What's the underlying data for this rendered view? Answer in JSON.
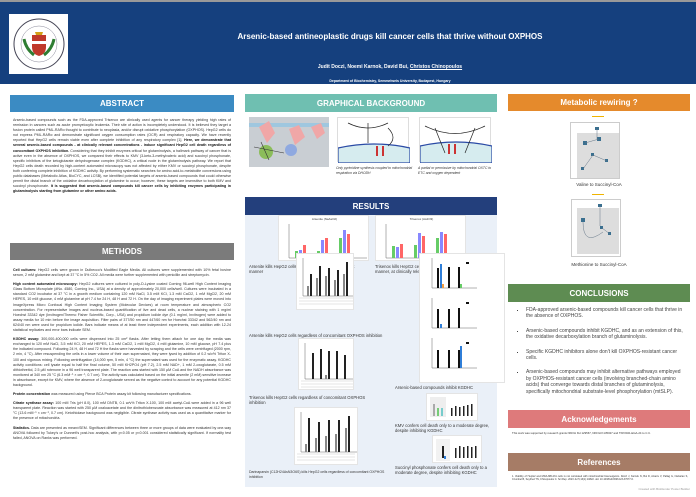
{
  "header": {
    "title": "Arsenic-based antineoplastic drugs kill cancer cells that thrive without OXPHOS",
    "authors": "Judit Doczi, Noemi Karnok, David Bui, ",
    "presenting_author": "Christos Chinopoulos",
    "affiliation": "Department of Biochemistry, Semmelweis University, Budapest, Hungary",
    "logo_text": "Universitas Budapestinensis de Semmelweis Nominata 1769"
  },
  "abstract": {
    "title": "ABSTRACT",
    "text1": "Arsenic-based compounds such as the FDA-approved Trisenox are clinically used agents for cancer therapy yielding high rates of remission in cancers such as acute promyelocytic leukemia. Their site of action is incompletely understood. It is believed they target a fusion protein called PML-RARα thought to contribute to neoplasia, and/or disrupt oxidative phosphorylation (OXPHOS). HepG2 cells do not express PML-RARα and demonstrate significant oxygen consumption rates (OCR) and respiratory capacity. We have recently reported that HepG2 cells remain viable even after complete inhibition of any respiratory complex [1]. ",
    "bold1": "Here, we demonstrate that several arsenic-based compounds - at clinically relevant concentrations - induce significant HepG2 cell death regardless of concomitant OXPHOS inhibition.",
    "text2": " Considering that they inhibit enzymes critical for glutaminolysis, a hallmark pathway of cancer that is active even in the absence of OXPHOS, we compared their effects to KMV (3-keto-3-methylvaleric acid) and succinyl phosphonate, specific inhibitors of the ketoglutarate dehydrogenase complex (KGDHC), a critical node in the glutaminolysis pathway. We report that HepG2 cells death recorded by high-content automated microscopy was not affected by either KMV or succinyl phosphonate, despite both conferring complete inhibition of KGDHC activity. By performing systematic searches for amino acid-to-metabolite conversions using public databases (Metabolic Atlas, BioCYC, and LCSB), we identified potential targets of arsenic-based compounds that could otherwise permit the distal branch of the oxidative decarboxylation of glutamine to occur; however, these targets are insensitive to both KMV and succinyl phosphonate. ",
    "bold2": "It is suggested that arsenic-based compounds kill cancer cells by inhibiting enzymes participating in glutaminolysis starting from glutamine or other amino acids."
  },
  "methods": {
    "title": "METHODS",
    "paragraphs": [
      {
        "label": "Cell cultures:",
        "text": " HepG2 cells were grown in Dulbecco's Modified Eagle Media. All cultures were supplemented with 10% fetal bovine serum, 2 mM glutamine and kept at 37 °C in 5% CO2. All media were further supplemented with penicillin and streptomycin."
      },
      {
        "label": "High content automated microscopy:",
        "text": " HepG2 cultures were cultured in poly-D-Lysine coated Corning 96-well High Content Imaging Glass Bottom Microplate (#No. 4580, Corning Inc., USA) at a density of approximately 20,000 cells/well. Cultures were incubated in a standard CO2 incubator at 37 °C in a growth medium containing 120 mM NaCl, 3.5 mM KCl, 1.3 mM CaCl2, 1 mM MgCl2, 20 mM HEPES, 10 mM glucose, 4 mM glutamine at pH 7.4 for 24 H, 48 H and 72 H. On the day of imaging experiment plates were moved into ImageXpress Micro Confocal High Content Imaging System (Molecular Devices) at room temperature and atmospheric CO2 concentration. For representative images and nucleus-based quantification of live and dead cells, a nuclear staining with 1 mg/ml Hoechst 33342 dye (Invitrogen/Thermo Fisher Scientific, Corp., USA) and propidium iodide dye (0.1 mg/ml, Invitrogen) were added to assay media for 10 min before the image acquisition. Filter pairs of 377/50 nm and 447/60 nm for Hoechst 33342 and 562/40 nm and 624/40 nm were used for propidium iodide. Bars indicate means of at least three independent experiments, each addition with 12-24 statistical replicates and error bars indicate SEM."
      },
      {
        "label": "KGDHC assay:",
        "text": " 300,000-400,000 cells were dispensed into 25 cm² flasks. After letting them attach for one day the media was exchanged to 120 mM NaCl, 3.5 mM KCl, 20 mM HEPES, 1.3 mM CaCl2, 1 mM MgCl2, 4 mM glutamine, 10 mM glucose, pH 7.4 plus the indicated compound. Following 24 H, 48 H and 72 H the flasks were harvested by scraping and the cells were centrifuged (2000 rpm, 2 min, 4 °C). After resuspending the cells in a lower volume of their own supernatant, they were lysed by addition of 0.2 w/v% Triton X-100 and vigorous mixing. Following centrifugation (14,000 rpm, 5 min, 4 °C) the supernatant was used for the enzymatic assay. KGDHC activity conditions: cell lysate equal to half the final volume, 50 mM KH2PO4 (pH 7.2), 2.5 mM NAD+, 1 mM 2-oxoglutarate, 0.5 mM dithiothreitol, 2.5 µM rotenone in a 96 well transparent plate. The reaction was started with 150 µM CoA and the NADH absorbance was monitored at 340 nm 25 °C (6.3 mM⁻¹ × cm⁻¹, 0.7 cm). The activity was calculated based on the initial arsenite (2 mM) sensitive increase in absorbance, except for KMV, where the absence of 2-oxoglutarate served as the negative control to account for any potential KGDHC background."
      },
      {
        "label": "Protein concentration",
        "text": " was measured using Pierce BCA Protein assay kit following manufacturer specifications."
      },
      {
        "label": "Citrate synthase assay:",
        "text": " 100 mM Tris (pH 8.0), 100 mM DNTB, 0.1 w/v% Triton X-100, 100 mM acetyl-CoA were added in a 96 well transparent plate. Reaction was started with 250 µM oxaloacetate and the dinitrothiobenzoate absorbance was measured at 412 nm 37 °C (13.6 mM⁻¹ × cm⁻¹, 0.7 cm). Ketothiolase background was negligible. Citrate synthase activity was used as a quantitative marker for the presence of mitochondria."
      },
      {
        "label": "Statistics.",
        "text": " Data are presented as mean±SEM. Significant differences between three or more groups of data were evaluated by one-way ANOVA followed by Tukey's or Dunnett's post-hoc analysis, with p<0.05 or p<0.001 considered statistically significant. If normality test failed, ANOVA on Ranks was performed."
      }
    ]
  },
  "graphical": {
    "title": "GRAPHICAL BACKGROUND",
    "captions": [
      "Only pyrimidine synthesis coupled to mitochondrial respiration via DHODH",
      "A partial or permissive by mitochondrial OXTC to ETC and oxygen dependent"
    ]
  },
  "results": {
    "title": "RESULTS",
    "fig_titles": [
      "Arsenite (NaAsO2)",
      "Trisenox (As2O3)"
    ],
    "captions": [
      "Arsenite kills HepG2 cells in a dose- and time-dependent manner",
      "Trisenox kills HepG2 cells in a dose- and time-dependent manner, at clinically relevant (0.7 micromolar) concentrations",
      "Arsenite kills HepG2 cells regardless of concomitant OXPHOS inhibition",
      "Trisenox kills HepG2 cells regardless of concomitant OXPHOS inhibition",
      "Darinaparsin (C12H24AsN3O6S) kills HepG2 cells regardless of concomitant OXPHOS inhibition",
      "Arsenic-based compounds inhibit KGDHC",
      "KMV confers cell death only to a moderate degree, despite inhibiting KGDHC",
      "Succinyl phosphonate confers cell death only to a moderate degree, despite inhibiting KGDHC"
    ]
  },
  "metabolic": {
    "title": "Metabolic rewiring ?",
    "captions": [
      "Valine to Succinyl-CoA",
      "Methionine to Succinyl-CoA"
    ]
  },
  "conclusions": {
    "title": "CONCLUSIONS",
    "items": [
      "FDA-approved arsenic-based compounds kill cancer cells that thrive in the absence of OXPHOS.",
      "Arsenic-based compounds inhibit KGDHC, and as an extension of this, the oxidative decarboxylation branch of glutaminolysis.",
      "Specific KGDHC inhibitors alone don't kill OXPHOS-resistant cancer cells.",
      "Arsenic-based compounds may inhibit alternative pathways employed by OXPHOS-resistant cancer cells (involving branched-chain amino acids) that converge towards distal branches of glutaminolysis, specifically mitochondrial substrate-level phosphorylation (mtSLP)."
    ]
  },
  "acknowledgements": {
    "title": "Acknowledgements",
    "text": "This work was supported by research grants NKFIH KH 129567, NKFIH K135027 and TKP2021-EGA-24 to C.C."
  },
  "references": {
    "title": "References",
    "text": "1. Viability of HepG2 and MDA-MB-231 cells is not correlated with mitochondrial bioenergetics. Doczi J, Karnok N, Bui D, Azarov V, Pallag G, Nazarian S, Czumbel B, Seyfried TN, Chinopoulos C. Sci Rep. 2023 Jul 5;13(1):10822. doi: 10.1038/s41598-023-37677-6."
  },
  "footer": "Created with BioRender Poster Builder"
}
